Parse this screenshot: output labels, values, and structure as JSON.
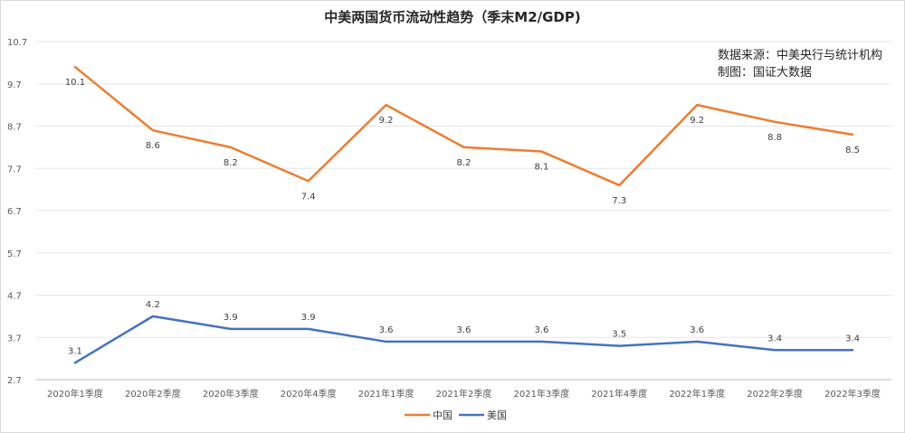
{
  "chart_data": {
    "type": "line",
    "title": "中美两国货币流动性趋势（季末M2/GDP)",
    "categories": [
      "2020年1季度",
      "2020年2季度",
      "2020年3季度",
      "2020年4季度",
      "2021年1季度",
      "2021年2季度",
      "2021年3季度",
      "2021年4季度",
      "2022年1季度",
      "2022年2季度",
      "2022年3季度"
    ],
    "series": [
      {
        "name": "中国",
        "color": "#ed7d31",
        "values": [
          10.1,
          8.6,
          8.2,
          7.4,
          9.2,
          8.2,
          8.1,
          7.3,
          9.2,
          8.8,
          8.5
        ]
      },
      {
        "name": "美国",
        "color": "#4472c4",
        "values": [
          3.1,
          4.2,
          3.9,
          3.9,
          3.6,
          3.6,
          3.6,
          3.5,
          3.6,
          3.4,
          3.4
        ]
      }
    ],
    "yticks": [
      2.7,
      3.7,
      4.7,
      5.7,
      6.7,
      7.7,
      8.7,
      9.7,
      10.7
    ],
    "ylim": [
      2.7,
      10.7
    ],
    "grid": true,
    "legend": "bottom-center",
    "annotations": [
      "数据来源：中美央行与统计机构",
      "制图：国证大数据"
    ]
  }
}
